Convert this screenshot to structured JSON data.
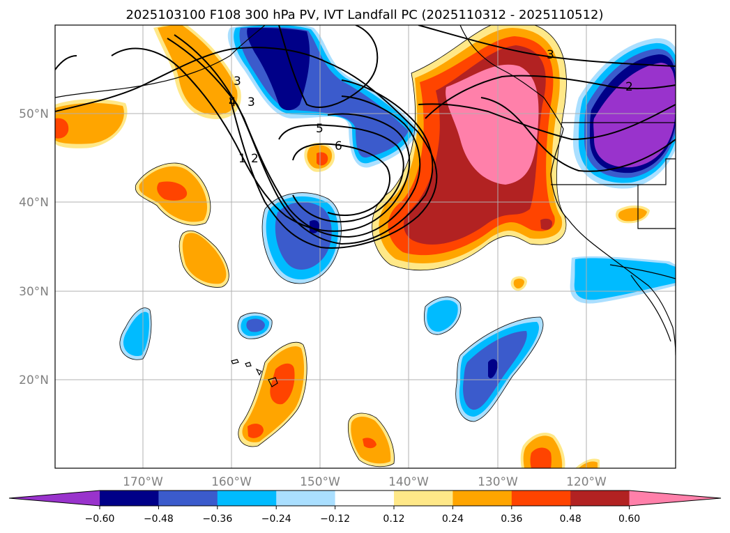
{
  "title": "2025103100 F108 300 hPa PV, IVT Landfall PC (2025110312 - 2025110512)",
  "map": {
    "lon_labels": [
      "170°W",
      "160°W",
      "150°W",
      "140°W",
      "130°W",
      "120°W"
    ],
    "lat_labels": [
      "50°N",
      "40°N",
      "30°N",
      "20°N"
    ],
    "contour_labels": [
      "3",
      "4",
      "3",
      "5",
      "6",
      "1",
      "2",
      "3",
      "2"
    ]
  },
  "colorbar": {
    "ticks": [
      "−0.60",
      "−0.48",
      "−0.36",
      "−0.24",
      "−0.12",
      "0.12",
      "0.24",
      "0.36",
      "0.48",
      "0.60"
    ],
    "colors": [
      "#9933cc",
      "#000088",
      "#3b5bcc",
      "#00bbff",
      "#aadfff",
      "#ffffff",
      "#ffe888",
      "#ffa500",
      "#ff4400",
      "#b22222",
      "#ff80aa"
    ]
  }
}
